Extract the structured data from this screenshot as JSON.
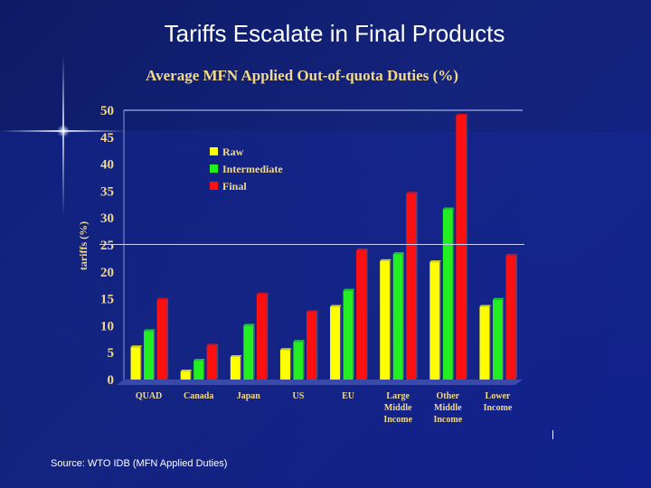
{
  "slide_title": "Tariffs Escalate in Final Products",
  "source": "Source: WTO IDB (MFN Applied Duties)",
  "colors": {
    "background": "#12208a",
    "axis_text": "#f2d98a",
    "raw": "#ffff00",
    "intermediate": "#22ee22",
    "final": "#ff1010"
  },
  "chart_data": {
    "type": "bar",
    "title": "Average MFN Applied Out-of-quota Duties (%)",
    "xlabel": "",
    "ylabel": "tariffs (%)",
    "ylim": [
      0,
      50
    ],
    "yticks": [
      "0",
      "5",
      "10",
      "15",
      "20",
      "25",
      "30",
      "35",
      "40",
      "45",
      "50"
    ],
    "grid": false,
    "legend_position": "upper-left",
    "categories": [
      [
        "QUAD"
      ],
      [
        "Canada"
      ],
      [
        "Japan"
      ],
      [
        "US"
      ],
      [
        "EU"
      ],
      [
        "Large",
        "Middle",
        "Income"
      ],
      [
        "Other",
        "Middle",
        "Income"
      ],
      [
        "Lower",
        "Income"
      ]
    ],
    "series": [
      {
        "name": "Raw",
        "color": "#ffff00",
        "values": [
          6,
          1.5,
          4.2,
          5.5,
          13.5,
          22,
          21.8,
          13.5
        ]
      },
      {
        "name": "Intermediate",
        "color": "#22ee22",
        "values": [
          9,
          3.5,
          10,
          7,
          16.5,
          23.3,
          31.6,
          14.8
        ]
      },
      {
        "name": "Final",
        "color": "#ff1010",
        "values": [
          14.8,
          6.3,
          15.8,
          12.5,
          24,
          34.5,
          49,
          23
        ]
      }
    ]
  }
}
